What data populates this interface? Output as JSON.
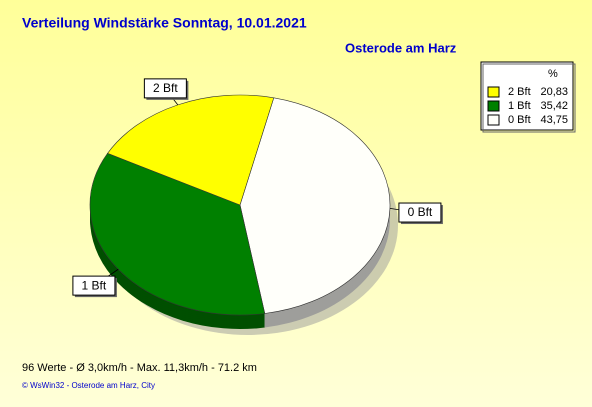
{
  "chart_data": {
    "type": "pie",
    "title": "Verteilung Windstärke  Sonntag, 10.01.2021",
    "subtitle": "Osterode am Harz",
    "legend_title": "%",
    "categories": [
      "2 Bft",
      "1 Bft",
      "0 Bft"
    ],
    "values": [
      20.83,
      35.42,
      43.75
    ],
    "value_labels": [
      "20,83",
      "35,42",
      "43,75"
    ],
    "colors": [
      "#ffff00",
      "#008000",
      "#fffffa"
    ],
    "footer": "96 Werte   -   Ø 3,0km/h  -  Max. 11,3km/h   -   71.2 km",
    "copyright": "© WsWin32  -  Osterode am Harz, City"
  }
}
